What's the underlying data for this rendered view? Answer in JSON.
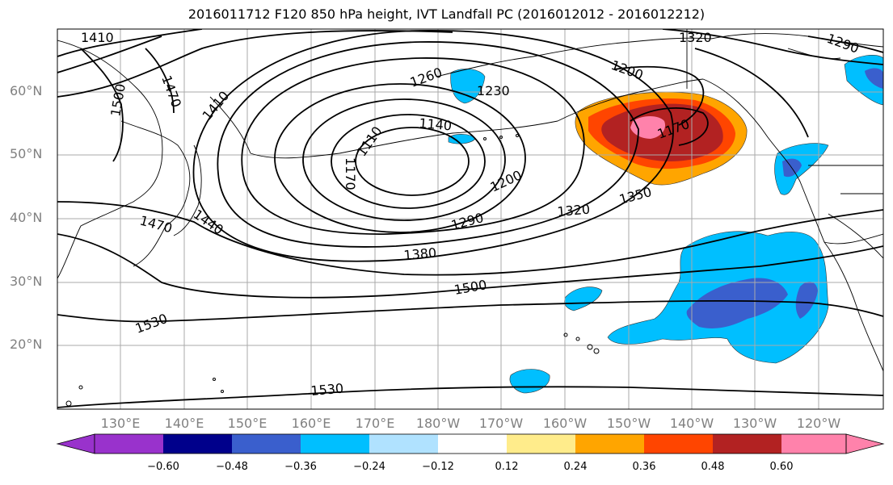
{
  "title": "2016011712 F120 850 hPa height, IVT Landfall PC (2016012012 - 2016012212)",
  "axes": {
    "lat_labels": [
      "60°N",
      "50°N",
      "40°N",
      "30°N",
      "20°N"
    ],
    "lon_labels": [
      "130°E",
      "140°E",
      "150°E",
      "160°E",
      "170°E",
      "180°W",
      "170°W",
      "160°W",
      "150°W",
      "140°W",
      "130°W",
      "120°W"
    ]
  },
  "contour_labels": [
    "1410",
    "1470",
    "1500",
    "1410",
    "1260",
    "1230",
    "1320",
    "1290",
    "1200",
    "1140",
    "1110",
    "1170",
    "1170",
    "1200",
    "1350",
    "1320",
    "1290",
    "1380",
    "1470",
    "1440",
    "1500",
    "1530",
    "1530"
  ],
  "colorbar": {
    "ticks": [
      "−0.60",
      "−0.48",
      "−0.36",
      "−0.24",
      "−0.12",
      "0.12",
      "0.24",
      "0.36",
      "0.48",
      "0.60"
    ],
    "colors": [
      "#9932cc",
      "#00008b",
      "#3a5fcd",
      "#00bfff",
      "#b0e2ff",
      "#ffffff",
      "#ffec8b",
      "#ffa500",
      "#ff4500",
      "#b22222",
      "#ff82ab"
    ]
  }
}
